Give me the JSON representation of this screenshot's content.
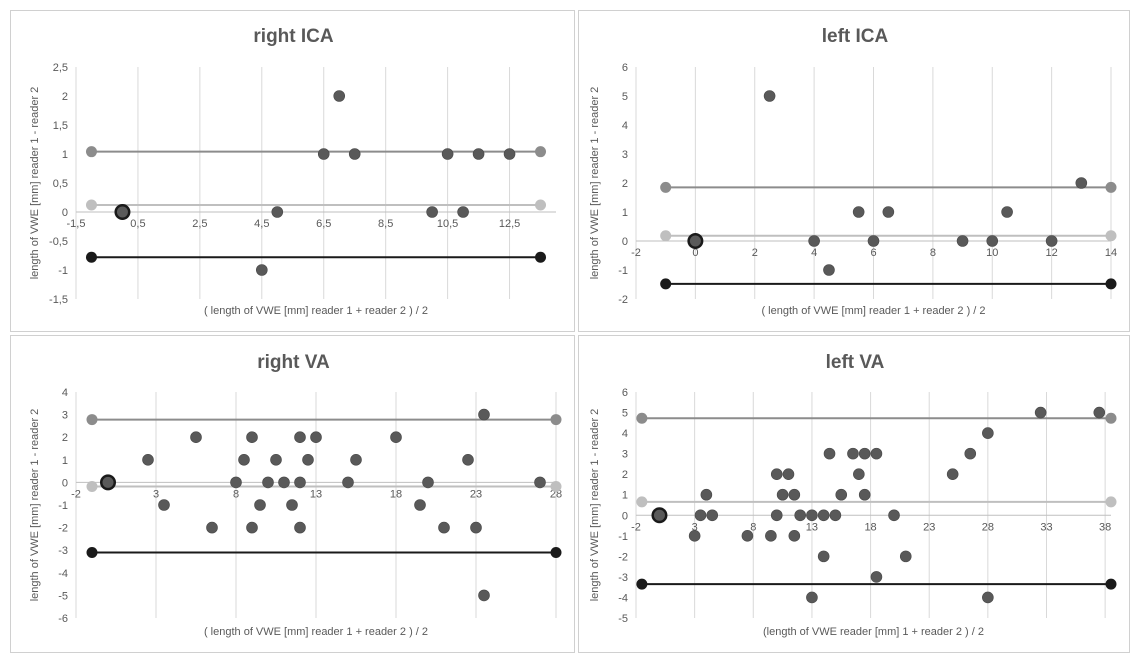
{
  "chart_data": [
    {
      "type": "scatter",
      "title": "right ICA",
      "xlabel": "( length of VWE [mm] reader 1 + reader 2 ) / 2",
      "ylabel": "length of VWE [mm] reader 1 - reader 2",
      "xlim": [
        -1.5,
        14.0
      ],
      "ylim": [
        -1.5,
        2.5
      ],
      "xticks": [
        -1.5,
        0.5,
        2.5,
        4.5,
        6.5,
        8.5,
        10.5,
        12.5
      ],
      "xtick_labels": [
        "-1,5",
        "0,5",
        "2,5",
        "4,5",
        "6,5",
        "8,5",
        "10,5",
        "12,5"
      ],
      "yticks": [
        -1.5,
        -1,
        -0.5,
        0,
        0.5,
        1,
        1.5,
        2,
        2.5
      ],
      "ytick_labels": [
        "-1,5",
        "-1",
        "-0,5",
        "0",
        "0,5",
        "1",
        "1,5",
        "2",
        "2,5"
      ],
      "grid": "vertical",
      "x_axis_at": 0,
      "points": [
        {
          "x": 0,
          "y": 0,
          "big": true
        },
        {
          "x": 4.5,
          "y": -1
        },
        {
          "x": 5.0,
          "y": 0
        },
        {
          "x": 6.5,
          "y": 1
        },
        {
          "x": 7.0,
          "y": 2
        },
        {
          "x": 7.5,
          "y": 1
        },
        {
          "x": 10.0,
          "y": 0
        },
        {
          "x": 10.5,
          "y": 1
        },
        {
          "x": 11.0,
          "y": 0
        },
        {
          "x": 11.5,
          "y": 1
        },
        {
          "x": 12.5,
          "y": 1
        }
      ],
      "lines": [
        {
          "name": "upper",
          "y": 1.04,
          "x": [
            -1.0,
            13.5
          ],
          "color": "#8c8c8c"
        },
        {
          "name": "mean",
          "y": 0.12,
          "x": [
            -1.0,
            13.5
          ],
          "color": "#bfbfbf"
        },
        {
          "name": "lower",
          "y": -0.78,
          "x": [
            -1.0,
            13.5
          ],
          "color": "#1a1a1a"
        }
      ]
    },
    {
      "type": "scatter",
      "title": "left ICA",
      "xlabel": "( length of VWE [mm] reader 1 + reader 2 ) / 2",
      "ylabel": "length of VWE [mm] reader 1 - reader 2",
      "xlim": [
        -2,
        14
      ],
      "ylim": [
        -2,
        6
      ],
      "xticks": [
        -2,
        0,
        2,
        4,
        6,
        8,
        10,
        12,
        14
      ],
      "xtick_labels": [
        "-2",
        "0",
        "2",
        "4",
        "6",
        "8",
        "10",
        "12",
        "14"
      ],
      "yticks": [
        -2,
        -1,
        0,
        1,
        2,
        3,
        4,
        5,
        6
      ],
      "ytick_labels": [
        "-2",
        "-1",
        "0",
        "1",
        "2",
        "3",
        "4",
        "5",
        "6"
      ],
      "grid": "vertical",
      "x_axis_at": 0,
      "points": [
        {
          "x": 0,
          "y": 0,
          "big": true
        },
        {
          "x": 2.5,
          "y": 5
        },
        {
          "x": 4.0,
          "y": 0
        },
        {
          "x": 4.5,
          "y": -1
        },
        {
          "x": 5.5,
          "y": 1
        },
        {
          "x": 6.0,
          "y": 0
        },
        {
          "x": 6.5,
          "y": 1
        },
        {
          "x": 9.0,
          "y": 0
        },
        {
          "x": 10.0,
          "y": 0
        },
        {
          "x": 10.5,
          "y": 1
        },
        {
          "x": 12.0,
          "y": 0
        },
        {
          "x": 13.0,
          "y": 2
        }
      ],
      "lines": [
        {
          "name": "upper",
          "y": 1.85,
          "x": [
            -1,
            14
          ],
          "color": "#8c8c8c"
        },
        {
          "name": "mean",
          "y": 0.18,
          "x": [
            -1,
            14
          ],
          "color": "#bfbfbf"
        },
        {
          "name": "lower",
          "y": -1.48,
          "x": [
            -1,
            14
          ],
          "color": "#1a1a1a"
        }
      ]
    },
    {
      "type": "scatter",
      "title": "right VA",
      "xlabel": "( length of VWE [mm] reader 1 + reader 2 ) / 2",
      "ylabel": "length of VWE [mm] reader 1 - reader 2",
      "xlim": [
        -2,
        28
      ],
      "ylim": [
        -6,
        4
      ],
      "xticks": [
        -2,
        3,
        8,
        13,
        18,
        23,
        28
      ],
      "xtick_labels": [
        "-2",
        "3",
        "8",
        "13",
        "18",
        "23",
        "28"
      ],
      "yticks": [
        -6,
        -5,
        -4,
        -3,
        -2,
        -1,
        0,
        1,
        2,
        3,
        4
      ],
      "ytick_labels": [
        "-6",
        "-5",
        "-4",
        "-3",
        "-2",
        "-1",
        "0",
        "1",
        "2",
        "3",
        "4"
      ],
      "grid": "vertical",
      "x_axis_at": 0,
      "points": [
        {
          "x": 0,
          "y": 0,
          "big": true
        },
        {
          "x": 2.5,
          "y": 1
        },
        {
          "x": 3.5,
          "y": -1
        },
        {
          "x": 5.5,
          "y": 2
        },
        {
          "x": 6.5,
          "y": -2
        },
        {
          "x": 8.0,
          "y": 0
        },
        {
          "x": 8.5,
          "y": 1
        },
        {
          "x": 9.0,
          "y": 2
        },
        {
          "x": 9.0,
          "y": -2
        },
        {
          "x": 9.5,
          "y": -1
        },
        {
          "x": 10.0,
          "y": 0
        },
        {
          "x": 10.5,
          "y": 1
        },
        {
          "x": 11.0,
          "y": 0
        },
        {
          "x": 11.5,
          "y": -1
        },
        {
          "x": 12.0,
          "y": 2
        },
        {
          "x": 12.0,
          "y": 0
        },
        {
          "x": 12.0,
          "y": -2
        },
        {
          "x": 12.5,
          "y": 1
        },
        {
          "x": 13.0,
          "y": 2
        },
        {
          "x": 15.0,
          "y": 0
        },
        {
          "x": 15.5,
          "y": 1
        },
        {
          "x": 18.0,
          "y": 2
        },
        {
          "x": 19.5,
          "y": -1
        },
        {
          "x": 20.0,
          "y": 0
        },
        {
          "x": 21.0,
          "y": -2
        },
        {
          "x": 22.5,
          "y": 1
        },
        {
          "x": 23.0,
          "y": -2
        },
        {
          "x": 23.5,
          "y": 3
        },
        {
          "x": 23.5,
          "y": -5
        },
        {
          "x": 27.0,
          "y": 0
        }
      ],
      "lines": [
        {
          "name": "upper",
          "y": 2.78,
          "x": [
            -1,
            28
          ],
          "color": "#8c8c8c"
        },
        {
          "name": "mean",
          "y": -0.18,
          "x": [
            -1,
            28
          ],
          "color": "#bfbfbf"
        },
        {
          "name": "lower",
          "y": -3.1,
          "x": [
            -1,
            28
          ],
          "color": "#1a1a1a"
        }
      ]
    },
    {
      "type": "scatter",
      "title": "left VA",
      "xlabel": "(length of VWE reader [mm] 1 + reader 2 ) / 2",
      "ylabel": "length of VWE [mm] reader 1 - reader 2",
      "xlim": [
        -2,
        38.5
      ],
      "ylim": [
        -5,
        6
      ],
      "xticks": [
        -2,
        3,
        8,
        13,
        18,
        23,
        28,
        33,
        38
      ],
      "xtick_labels": [
        "-2",
        "3",
        "8",
        "13",
        "18",
        "23",
        "28",
        "33",
        "38"
      ],
      "yticks": [
        -5,
        -4,
        -3,
        -2,
        -1,
        0,
        1,
        2,
        3,
        4,
        5,
        6
      ],
      "ytick_labels": [
        "-5",
        "-4",
        "-3",
        "-2",
        "-1",
        "0",
        "1",
        "2",
        "3",
        "4",
        "5",
        "6"
      ],
      "grid": "vertical",
      "x_axis_at": 0,
      "points": [
        {
          "x": 0,
          "y": 0,
          "big": true
        },
        {
          "x": 3.0,
          "y": -1
        },
        {
          "x": 3.5,
          "y": 0
        },
        {
          "x": 4.0,
          "y": 1
        },
        {
          "x": 4.5,
          "y": 0
        },
        {
          "x": 7.5,
          "y": -1
        },
        {
          "x": 9.5,
          "y": -1
        },
        {
          "x": 10.0,
          "y": 2
        },
        {
          "x": 10.0,
          "y": 0
        },
        {
          "x": 10.5,
          "y": 1
        },
        {
          "x": 11.0,
          "y": 2
        },
        {
          "x": 11.5,
          "y": 1
        },
        {
          "x": 11.5,
          "y": -1
        },
        {
          "x": 12.0,
          "y": 0
        },
        {
          "x": 13.0,
          "y": -4
        },
        {
          "x": 13.0,
          "y": 0
        },
        {
          "x": 14.0,
          "y": 0
        },
        {
          "x": 14.0,
          "y": -2
        },
        {
          "x": 14.5,
          "y": 3
        },
        {
          "x": 15.0,
          "y": 0
        },
        {
          "x": 15.5,
          "y": 1
        },
        {
          "x": 16.5,
          "y": 3
        },
        {
          "x": 17.0,
          "y": 2
        },
        {
          "x": 17.5,
          "y": 3
        },
        {
          "x": 17.5,
          "y": 1
        },
        {
          "x": 18.5,
          "y": 3
        },
        {
          "x": 18.5,
          "y": -3
        },
        {
          "x": 20.0,
          "y": 0
        },
        {
          "x": 21.0,
          "y": -2
        },
        {
          "x": 25.0,
          "y": 2
        },
        {
          "x": 26.5,
          "y": 3
        },
        {
          "x": 28.0,
          "y": 4
        },
        {
          "x": 28.0,
          "y": -4
        },
        {
          "x": 32.5,
          "y": 5
        },
        {
          "x": 37.5,
          "y": 5
        }
      ],
      "lines": [
        {
          "name": "upper",
          "y": 4.72,
          "x": [
            -1.5,
            38.5
          ],
          "color": "#8c8c8c"
        },
        {
          "name": "mean",
          "y": 0.65,
          "x": [
            -1.5,
            38.5
          ],
          "color": "#bfbfbf"
        },
        {
          "name": "lower",
          "y": -3.35,
          "x": [
            -1.5,
            38.5
          ],
          "color": "#1a1a1a"
        }
      ]
    }
  ]
}
